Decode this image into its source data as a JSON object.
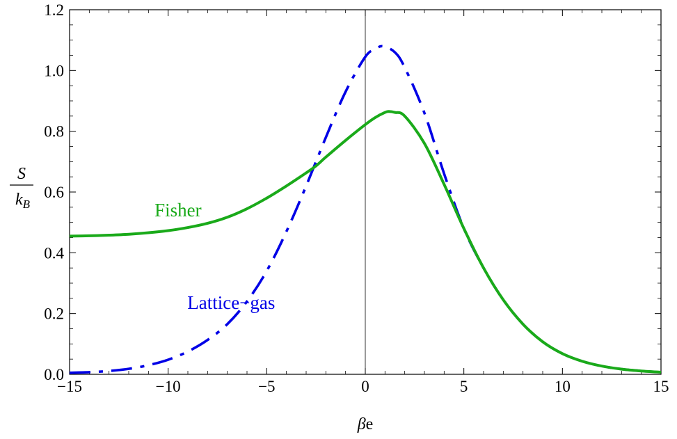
{
  "chart_data": {
    "type": "line",
    "xlabel": "βe",
    "ylabel": {
      "numerator": "S",
      "denominator": "k",
      "subscript": "B"
    },
    "xlim": [
      -15,
      15
    ],
    "ylim": [
      0,
      1.2
    ],
    "x_ticks": [
      -15,
      -10,
      -5,
      0,
      5,
      10,
      15
    ],
    "x_tick_labels": [
      "−15",
      "−10",
      "−5",
      "0",
      "5",
      "10",
      "15"
    ],
    "y_ticks": [
      0.0,
      0.2,
      0.4,
      0.6,
      0.8,
      1.0,
      1.2
    ],
    "y_tick_labels": [
      "0.0",
      "0.2",
      "0.4",
      "0.6",
      "0.8",
      "1.0",
      "1.2"
    ],
    "grid": false,
    "zero_line": true,
    "series": [
      {
        "name": "Fisher",
        "color": "#1aaa1a",
        "style": "solid",
        "x": [
          -15,
          -14,
          -13,
          -12,
          -11,
          -10,
          -9,
          -8,
          -7,
          -6,
          -5,
          -4,
          -3,
          -2.5,
          -2,
          -1,
          0,
          0.5,
          1,
          1.2,
          1.5,
          2,
          3,
          4,
          5,
          6,
          7,
          8,
          9,
          10,
          11,
          12,
          13,
          14,
          15
        ],
        "y": [
          0.455,
          0.456,
          0.458,
          0.461,
          0.466,
          0.473,
          0.483,
          0.497,
          0.517,
          0.545,
          0.58,
          0.62,
          0.663,
          0.686,
          0.715,
          0.77,
          0.822,
          0.845,
          0.862,
          0.865,
          0.862,
          0.85,
          0.76,
          0.625,
          0.48,
          0.35,
          0.245,
          0.165,
          0.107,
          0.068,
          0.043,
          0.027,
          0.017,
          0.011,
          0.007
        ]
      },
      {
        "name": "Lattice−gas",
        "color": "#0000e6",
        "style": "dashdot",
        "x": [
          -15,
          -14,
          -13,
          -12,
          -11,
          -10,
          -9,
          -8,
          -7,
          -6,
          -5,
          -4,
          -3,
          -2,
          -1,
          0,
          0.5,
          0.9,
          1.5,
          2,
          3,
          4,
          5,
          6,
          7,
          8,
          9,
          10,
          11,
          12,
          13,
          14,
          15
        ],
        "y": [
          0.005,
          0.007,
          0.011,
          0.018,
          0.03,
          0.048,
          0.075,
          0.113,
          0.165,
          0.24,
          0.34,
          0.47,
          0.62,
          0.78,
          0.93,
          1.045,
          1.07,
          1.08,
          1.06,
          1.01,
          0.86,
          0.66,
          0.48,
          0.35,
          0.245,
          0.165,
          0.107,
          0.068,
          0.043,
          0.027,
          0.017,
          0.011,
          0.007
        ]
      }
    ],
    "annotations": [
      {
        "text": "Fisher",
        "x": -9.5,
        "y": 0.52,
        "color": "#1aaa1a"
      },
      {
        "text": "Lattice−gas",
        "x": -6.8,
        "y": 0.215,
        "color": "#0000e6"
      }
    ]
  }
}
